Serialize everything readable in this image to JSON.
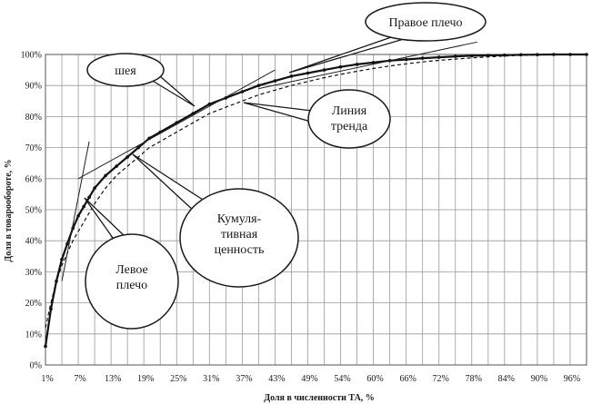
{
  "chart_data": {
    "type": "line",
    "title": "",
    "xlabel": "Доля в численности ТА, %",
    "ylabel": "Доля в товарообороте, %",
    "x_ticks": [
      "1%",
      "7%",
      "13%",
      "19%",
      "25%",
      "31%",
      "37%",
      "43%",
      "49%",
      "54%",
      "60%",
      "66%",
      "72%",
      "78%",
      "84%",
      "90%",
      "96%"
    ],
    "y_ticks": [
      "0%",
      "10%",
      "20%",
      "30%",
      "40%",
      "50%",
      "60%",
      "70%",
      "80%",
      "90%",
      "100%"
    ],
    "xlim": [
      1,
      100
    ],
    "ylim": [
      0,
      100
    ],
    "grid": true,
    "series": [
      {
        "label": "cumulative",
        "style": "solid-markers",
        "x": [
          1,
          2,
          3,
          4,
          5,
          6,
          7,
          8,
          9,
          10,
          12,
          14,
          16,
          18,
          20,
          22,
          25,
          28,
          31,
          34,
          37,
          40,
          43,
          46,
          49,
          52,
          55,
          58,
          61,
          64,
          67,
          70,
          73,
          76,
          79,
          82,
          85,
          88,
          91,
          94,
          97,
          100
        ],
        "y": [
          6,
          18,
          27,
          34,
          39,
          44,
          48,
          51,
          54,
          57,
          61,
          64,
          67,
          70,
          73,
          75,
          78,
          81,
          84,
          86,
          88,
          90,
          91.5,
          93,
          94,
          95,
          96,
          96.8,
          97.4,
          98,
          98.4,
          98.8,
          99.1,
          99.4,
          99.6,
          99.7,
          99.8,
          99.9,
          99.95,
          100,
          100,
          100
        ]
      },
      {
        "label": "trend",
        "style": "dashed",
        "x": [
          1,
          2,
          3,
          4,
          5,
          6,
          7,
          8,
          9,
          10,
          12,
          14,
          16,
          18,
          20,
          22,
          25,
          28,
          31,
          34,
          37,
          40,
          43,
          46,
          49,
          52,
          55,
          58,
          61,
          64,
          67,
          70,
          73,
          76,
          79,
          82,
          85,
          88,
          91,
          94,
          97,
          100
        ],
        "y": [
          12,
          20,
          27,
          32,
          36,
          40,
          43,
          46,
          49,
          52,
          57,
          61,
          64,
          67,
          70,
          72,
          75,
          78,
          81,
          83,
          85,
          87,
          88.5,
          90,
          91.3,
          92.5,
          93.6,
          94.6,
          95.5,
          96.3,
          97,
          97.6,
          98.1,
          98.5,
          98.9,
          99.2,
          99.5,
          99.7,
          99.85,
          100,
          100,
          100
        ]
      }
    ],
    "tangents": [
      {
        "name": "left",
        "x1": 4,
        "y1": 27,
        "x2": 9,
        "y2": 72
      },
      {
        "name": "neck",
        "x1": 7,
        "y1": 60,
        "x2": 43,
        "y2": 95
      },
      {
        "name": "right",
        "x1": 40,
        "y1": 89,
        "x2": 80,
        "y2": 104
      }
    ],
    "annotations": [
      {
        "name": "callout-pravoe-plecho",
        "text": [
          "Правое плечо"
        ],
        "shape": "cloud"
      },
      {
        "name": "callout-sheya",
        "text": [
          "шея"
        ],
        "shape": "cloud"
      },
      {
        "name": "callout-liniya-trenda",
        "text": [
          "Линия",
          "тренда"
        ],
        "shape": "cloud"
      },
      {
        "name": "callout-kumulyativnaya",
        "text": [
          "Кумуля-",
          "тивная",
          "ценность"
        ],
        "shape": "cloud"
      },
      {
        "name": "callout-levoe-plecho",
        "text": [
          "Левое",
          "плечо"
        ],
        "shape": "cloud"
      }
    ],
    "colors": {
      "line": "#111111",
      "grid": "#9a9a9a",
      "callout_fill": "#ffffff",
      "callout_stroke": "#1a1a1a"
    }
  }
}
